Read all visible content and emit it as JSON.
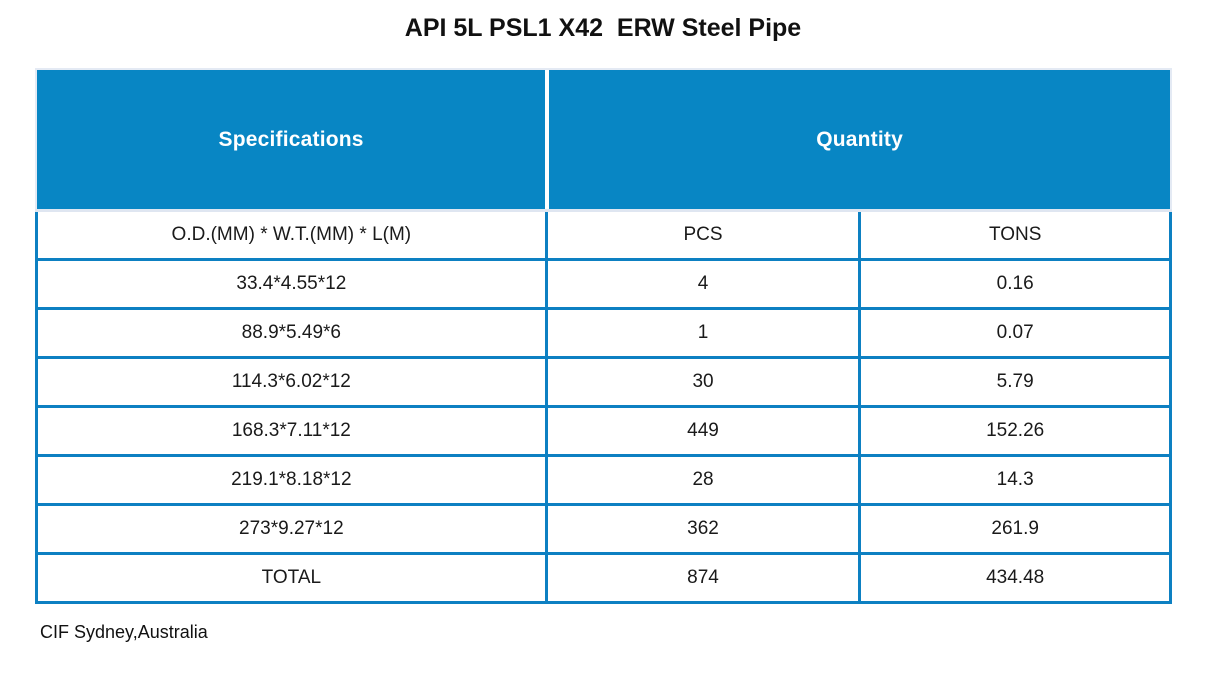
{
  "title": "API 5L PSL1 X42  ERW Steel Pipe",
  "table": {
    "header": {
      "specifications": "Specifications",
      "quantity": "Quantity"
    },
    "columns": [
      "O.D.(MM) * W.T.(MM) * L(M)",
      "PCS",
      "TONS"
    ],
    "rows": [
      {
        "spec": "33.4*4.55*12",
        "pcs": "4",
        "tons": "0.16"
      },
      {
        "spec": "88.9*5.49*6",
        "pcs": "1",
        "tons": "0.07"
      },
      {
        "spec": "114.3*6.02*12",
        "pcs": "30",
        "tons": "5.79"
      },
      {
        "spec": "168.3*7.11*12",
        "pcs": "449",
        "tons": "152.26"
      },
      {
        "spec": "219.1*8.18*12",
        "pcs": "28",
        "tons": "14.3"
      },
      {
        "spec": "273*9.27*12",
        "pcs": "362",
        "tons": "261.9"
      }
    ],
    "total_row": {
      "spec": "TOTAL",
      "pcs": "874",
      "tons": "434.48"
    }
  },
  "footer": "CIF Sydney,Australia",
  "colors": {
    "header_fill": "#0886c4",
    "grid_border": "#0d80c2",
    "header_text": "#ffffff",
    "body_text": "#1a1a1a",
    "light_separator": "#dfe6f1"
  }
}
